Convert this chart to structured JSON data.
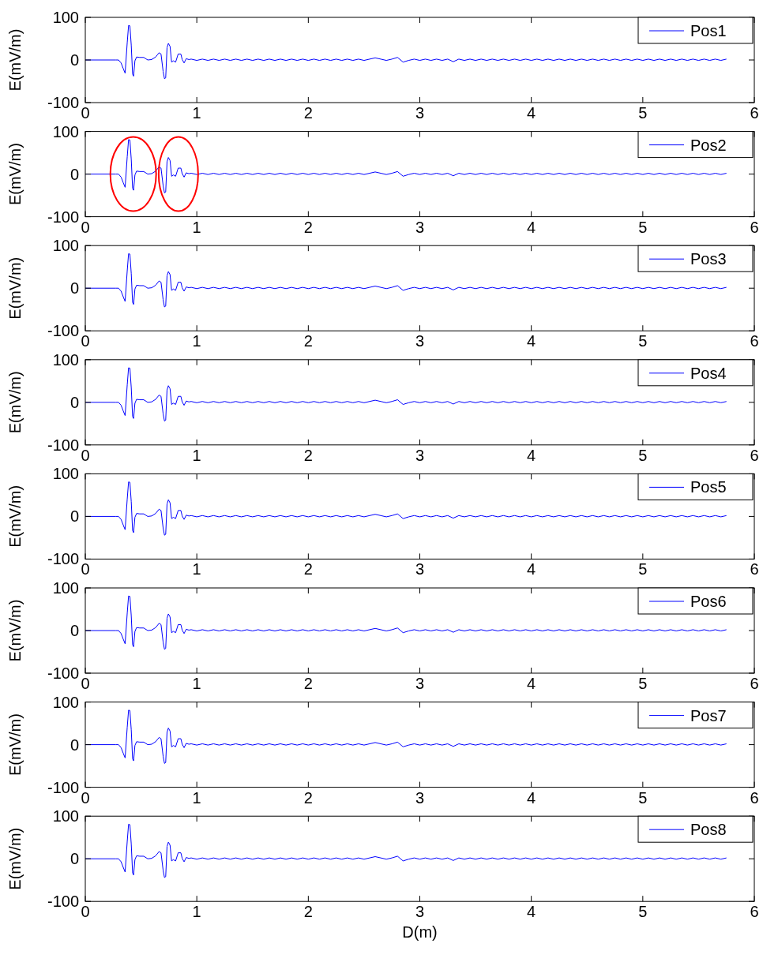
{
  "chart_data": [
    {
      "type": "line",
      "ylabel": "E(mV/m)",
      "xlim": [
        0,
        6
      ],
      "xticks": [
        0,
        1,
        2,
        3,
        4,
        5,
        6
      ],
      "ylim": [
        -100,
        100
      ],
      "yticks": [
        -100,
        0,
        100
      ],
      "legend": "top right",
      "grid": false,
      "x": [
        0,
        0.274,
        0.298,
        0.321,
        0.34,
        0.357,
        0.376,
        0.388,
        0.4,
        0.412,
        0.424,
        0.433,
        0.445,
        0.46,
        0.488,
        0.524,
        0.56,
        0.595,
        0.631,
        0.662,
        0.679,
        0.698,
        0.71,
        0.721,
        0.733,
        0.745,
        0.76,
        0.774,
        0.79,
        0.81,
        0.833,
        0.857,
        0.869,
        0.886,
        0.905,
        0.929,
        0.95,
        1,
        1.05,
        1.1,
        1.15,
        1.2,
        1.25,
        1.3,
        1.35,
        1.4,
        1.45,
        1.5,
        1.55,
        1.6,
        1.65,
        1.7,
        1.75,
        1.8,
        1.85,
        1.9,
        1.95,
        2,
        2.05,
        2.1,
        2.15,
        2.2,
        2.25,
        2.3,
        2.35,
        2.4,
        2.45,
        2.5,
        2.55,
        2.6,
        2.65,
        2.7,
        2.75,
        2.8,
        2.85,
        2.9,
        2.95,
        3,
        3.05,
        3.1,
        3.15,
        3.2,
        3.25,
        3.3,
        3.35,
        3.4,
        3.45,
        3.5,
        3.55,
        3.6,
        3.65,
        3.7,
        3.75,
        3.8,
        3.85,
        3.9,
        3.95,
        4,
        4.05,
        4.1,
        4.15,
        4.2,
        4.25,
        4.3,
        4.35,
        4.4,
        4.45,
        4.5,
        4.55,
        4.6,
        4.65,
        4.7,
        4.75,
        4.8,
        4.85,
        4.9,
        4.95,
        5,
        5.05,
        5.1,
        5.15,
        5.2,
        5.25,
        5.3,
        5.35,
        5.4,
        5.45,
        5.5,
        5.55,
        5.6,
        5.65,
        5.7,
        5.75
      ],
      "series": [
        {
          "name": "Pos1",
          "color": "#0000ff",
          "values": [
            0,
            0,
            0,
            -7,
            -20,
            -31,
            41,
            81,
            80,
            35,
            -33,
            -38,
            -2,
            7,
            6,
            6,
            0,
            1,
            7,
            17,
            14,
            -27,
            -44,
            -42,
            29,
            39,
            32,
            -5,
            -2,
            -5,
            14,
            14,
            1,
            -7,
            3,
            1,
            2,
            -1,
            2,
            -1,
            2,
            -1,
            2,
            -1,
            2,
            -1,
            2,
            -1,
            2,
            -1,
            2,
            -1,
            2,
            -1,
            2,
            -1,
            2,
            -1,
            2,
            -1,
            2,
            -1,
            2,
            -1,
            2,
            -1,
            2,
            -1,
            2,
            5,
            2,
            -1,
            2,
            6,
            -5,
            -1,
            2,
            -1,
            2,
            -1,
            2,
            -1,
            2,
            -4,
            2,
            -1,
            2,
            -1,
            2,
            -1,
            2,
            -1,
            2,
            -1,
            2,
            -1,
            2,
            -1,
            2,
            -1,
            2,
            -1,
            2,
            -1,
            2,
            -1,
            2,
            -1,
            2,
            -1,
            2,
            -1,
            2,
            -1,
            2,
            -1,
            2,
            -1,
            2,
            -1,
            2,
            -1,
            2,
            -1,
            2,
            -1,
            2,
            -1,
            2,
            -1,
            2,
            -1,
            2
          ]
        }
      ]
    },
    {
      "type": "line",
      "ylabel": "E(mV/m)",
      "xlim": [
        0,
        6
      ],
      "xticks": [
        0,
        1,
        2,
        3,
        4,
        5,
        6
      ],
      "ylim": [
        -100,
        100
      ],
      "yticks": [
        -100,
        0,
        100
      ],
      "legend": "top right",
      "grid": false,
      "x": [
        0,
        0.274,
        0.298,
        0.321,
        0.34,
        0.357,
        0.376,
        0.388,
        0.4,
        0.412,
        0.424,
        0.433,
        0.445,
        0.46,
        0.488,
        0.524,
        0.56,
        0.595,
        0.631,
        0.662,
        0.679,
        0.698,
        0.71,
        0.721,
        0.733,
        0.745,
        0.76,
        0.774,
        0.79,
        0.81,
        0.833,
        0.857,
        0.869,
        0.886,
        0.905,
        0.929,
        0.95,
        1,
        1.05,
        1.1,
        1.15,
        1.2,
        1.25,
        1.3,
        1.35,
        1.4,
        1.45,
        1.5,
        1.55,
        1.6,
        1.65,
        1.7,
        1.75,
        1.8,
        1.85,
        1.9,
        1.95,
        2,
        2.05,
        2.1,
        2.15,
        2.2,
        2.25,
        2.3,
        2.35,
        2.4,
        2.45,
        2.5,
        2.55,
        2.6,
        2.65,
        2.7,
        2.75,
        2.8,
        2.85,
        2.9,
        2.95,
        3,
        3.05,
        3.1,
        3.15,
        3.2,
        3.25,
        3.3,
        3.35,
        3.4,
        3.45,
        3.5,
        3.55,
        3.6,
        3.65,
        3.7,
        3.75,
        3.8,
        3.85,
        3.9,
        3.95,
        4,
        4.05,
        4.1,
        4.15,
        4.2,
        4.25,
        4.3,
        4.35,
        4.4,
        4.45,
        4.5,
        4.55,
        4.6,
        4.65,
        4.7,
        4.75,
        4.8,
        4.85,
        4.9,
        4.95,
        5,
        5.05,
        5.1,
        5.15,
        5.2,
        5.25,
        5.3,
        5.35,
        5.4,
        5.45,
        5.5,
        5.55,
        5.6,
        5.65,
        5.7,
        5.75
      ],
      "series": [
        {
          "name": "Pos2",
          "color": "#0000ff",
          "values": [
            0,
            0,
            0,
            -7,
            -20,
            -31,
            41,
            81,
            80,
            35,
            -33,
            -38,
            -2,
            7,
            6,
            6,
            0,
            1,
            7,
            17,
            14,
            -27,
            -44,
            -42,
            29,
            39,
            32,
            -5,
            -2,
            -5,
            14,
            14,
            1,
            -7,
            3,
            1,
            2,
            -1,
            2,
            -1,
            2,
            -1,
            2,
            -1,
            2,
            -1,
            2,
            -1,
            2,
            -1,
            2,
            -1,
            2,
            -1,
            2,
            -1,
            2,
            -1,
            2,
            -1,
            2,
            -1,
            2,
            -1,
            2,
            -1,
            2,
            -1,
            2,
            5,
            2,
            -1,
            2,
            6,
            -5,
            -1,
            2,
            -1,
            2,
            -1,
            2,
            -1,
            2,
            -4,
            2,
            -1,
            2,
            -1,
            2,
            -1,
            2,
            -1,
            2,
            -1,
            2,
            -1,
            2,
            -1,
            2,
            -1,
            2,
            -1,
            2,
            -1,
            2,
            -1,
            2,
            -1,
            2,
            -1,
            2,
            -1,
            2,
            -1,
            2,
            -1,
            2,
            -1,
            2,
            -1,
            2,
            -1,
            2,
            -1,
            2,
            -1,
            2,
            -1,
            2,
            -1,
            2,
            -1,
            2
          ]
        }
      ]
    },
    {
      "type": "line",
      "ylabel": "E(mV/m)",
      "xlim": [
        0,
        6
      ],
      "xticks": [
        0,
        1,
        2,
        3,
        4,
        5,
        6
      ],
      "ylim": [
        -100,
        100
      ],
      "yticks": [
        -100,
        0,
        100
      ],
      "legend": "top right",
      "grid": false,
      "x": [
        0,
        0.274,
        0.298,
        0.321,
        0.34,
        0.357,
        0.376,
        0.388,
        0.4,
        0.412,
        0.424,
        0.433,
        0.445,
        0.46,
        0.488,
        0.524,
        0.56,
        0.595,
        0.631,
        0.662,
        0.679,
        0.698,
        0.71,
        0.721,
        0.733,
        0.745,
        0.76,
        0.774,
        0.79,
        0.81,
        0.833,
        0.857,
        0.869,
        0.886,
        0.905,
        0.929,
        0.95,
        1,
        1.05,
        1.1,
        1.15,
        1.2,
        1.25,
        1.3,
        1.35,
        1.4,
        1.45,
        1.5,
        1.55,
        1.6,
        1.65,
        1.7,
        1.75,
        1.8,
        1.85,
        1.9,
        1.95,
        2,
        2.05,
        2.1,
        2.15,
        2.2,
        2.25,
        2.3,
        2.35,
        2.4,
        2.45,
        2.5,
        2.55,
        2.6,
        2.65,
        2.7,
        2.75,
        2.8,
        2.85,
        2.9,
        2.95,
        3,
        3.05,
        3.1,
        3.15,
        3.2,
        3.25,
        3.3,
        3.35,
        3.4,
        3.45,
        3.5,
        3.55,
        3.6,
        3.65,
        3.7,
        3.75,
        3.8,
        3.85,
        3.9,
        3.95,
        4,
        4.05,
        4.1,
        4.15,
        4.2,
        4.25,
        4.3,
        4.35,
        4.4,
        4.45,
        4.5,
        4.55,
        4.6,
        4.65,
        4.7,
        4.75,
        4.8,
        4.85,
        4.9,
        4.95,
        5,
        5.05,
        5.1,
        5.15,
        5.2,
        5.25,
        5.3,
        5.35,
        5.4,
        5.45,
        5.5,
        5.55,
        5.6,
        5.65,
        5.7,
        5.75
      ],
      "series": [
        {
          "name": "Pos3",
          "color": "#0000ff",
          "values": [
            0,
            0,
            0,
            -7,
            -20,
            -31,
            41,
            81,
            80,
            35,
            -33,
            -38,
            -2,
            7,
            6,
            6,
            0,
            1,
            7,
            17,
            14,
            -27,
            -44,
            -42,
            29,
            39,
            32,
            -5,
            -2,
            -5,
            14,
            14,
            1,
            -7,
            3,
            1,
            2,
            -1,
            2,
            -1,
            2,
            -1,
            2,
            -1,
            2,
            -1,
            2,
            -1,
            2,
            -1,
            2,
            -1,
            2,
            -1,
            2,
            -1,
            2,
            -1,
            2,
            -1,
            2,
            -1,
            2,
            -1,
            2,
            -1,
            2,
            -1,
            2,
            5,
            2,
            -1,
            2,
            6,
            -5,
            -1,
            2,
            -1,
            2,
            -1,
            2,
            -1,
            2,
            -4,
            2,
            -1,
            2,
            -1,
            2,
            -1,
            2,
            -1,
            2,
            -1,
            2,
            -1,
            2,
            -1,
            2,
            -1,
            2,
            -1,
            2,
            -1,
            2,
            -1,
            2,
            -1,
            2,
            -1,
            2,
            -1,
            2,
            -1,
            2,
            -1,
            2,
            -1,
            2,
            -1,
            2,
            -1,
            2,
            -1,
            2,
            -1,
            2,
            -1,
            2,
            -1,
            2,
            -1,
            2
          ]
        }
      ]
    },
    {
      "type": "line",
      "ylabel": "E(mV/m)",
      "xlim": [
        0,
        6
      ],
      "xticks": [
        0,
        1,
        2,
        3,
        4,
        5,
        6
      ],
      "ylim": [
        -100,
        100
      ],
      "yticks": [
        -100,
        0,
        100
      ],
      "legend": "top right",
      "grid": false,
      "x": [
        0,
        0.274,
        0.298,
        0.321,
        0.34,
        0.357,
        0.376,
        0.388,
        0.4,
        0.412,
        0.424,
        0.433,
        0.445,
        0.46,
        0.488,
        0.524,
        0.56,
        0.595,
        0.631,
        0.662,
        0.679,
        0.698,
        0.71,
        0.721,
        0.733,
        0.745,
        0.76,
        0.774,
        0.79,
        0.81,
        0.833,
        0.857,
        0.869,
        0.886,
        0.905,
        0.929,
        0.95,
        1,
        1.05,
        1.1,
        1.15,
        1.2,
        1.25,
        1.3,
        1.35,
        1.4,
        1.45,
        1.5,
        1.55,
        1.6,
        1.65,
        1.7,
        1.75,
        1.8,
        1.85,
        1.9,
        1.95,
        2,
        2.05,
        2.1,
        2.15,
        2.2,
        2.25,
        2.3,
        2.35,
        2.4,
        2.45,
        2.5,
        2.55,
        2.6,
        2.65,
        2.7,
        2.75,
        2.8,
        2.85,
        2.9,
        2.95,
        3,
        3.05,
        3.1,
        3.15,
        3.2,
        3.25,
        3.3,
        3.35,
        3.4,
        3.45,
        3.5,
        3.55,
        3.6,
        3.65,
        3.7,
        3.75,
        3.8,
        3.85,
        3.9,
        3.95,
        4,
        4.05,
        4.1,
        4.15,
        4.2,
        4.25,
        4.3,
        4.35,
        4.4,
        4.45,
        4.5,
        4.55,
        4.6,
        4.65,
        4.7,
        4.75,
        4.8,
        4.85,
        4.9,
        4.95,
        5,
        5.05,
        5.1,
        5.15,
        5.2,
        5.25,
        5.3,
        5.35,
        5.4,
        5.45,
        5.5,
        5.55,
        5.6,
        5.65,
        5.7,
        5.75
      ],
      "series": [
        {
          "name": "Pos4",
          "color": "#0000ff",
          "values": [
            0,
            0,
            0,
            -7,
            -20,
            -31,
            41,
            81,
            80,
            35,
            -33,
            -38,
            -2,
            7,
            6,
            6,
            0,
            1,
            7,
            17,
            14,
            -27,
            -44,
            -42,
            29,
            39,
            32,
            -5,
            -2,
            -5,
            14,
            14,
            1,
            -7,
            3,
            1,
            2,
            -1,
            2,
            -1,
            2,
            -1,
            2,
            -1,
            2,
            -1,
            2,
            -1,
            2,
            -1,
            2,
            -1,
            2,
            -1,
            2,
            -1,
            2,
            -1,
            2,
            -1,
            2,
            -1,
            2,
            -1,
            2,
            -1,
            2,
            -1,
            2,
            5,
            2,
            -1,
            2,
            6,
            -5,
            -1,
            2,
            -1,
            2,
            -1,
            2,
            -1,
            2,
            -4,
            2,
            -1,
            2,
            -1,
            2,
            -1,
            2,
            -1,
            2,
            -1,
            2,
            -1,
            2,
            -1,
            2,
            -1,
            2,
            -1,
            2,
            -1,
            2,
            -1,
            2,
            -1,
            2,
            -1,
            2,
            -1,
            2,
            -1,
            2,
            -1,
            2,
            -1,
            2,
            -1,
            2,
            -1,
            2,
            -1,
            2,
            -1,
            2,
            -1,
            2,
            -1,
            2,
            -1,
            2
          ]
        }
      ]
    },
    {
      "type": "line",
      "ylabel": "E(mV/m)",
      "xlim": [
        0,
        6
      ],
      "xticks": [
        0,
        1,
        2,
        3,
        4,
        5,
        6
      ],
      "ylim": [
        -100,
        100
      ],
      "yticks": [
        -100,
        0,
        100
      ],
      "legend": "top right",
      "grid": false,
      "x": [
        0,
        0.274,
        0.298,
        0.321,
        0.34,
        0.357,
        0.376,
        0.388,
        0.4,
        0.412,
        0.424,
        0.433,
        0.445,
        0.46,
        0.488,
        0.524,
        0.56,
        0.595,
        0.631,
        0.662,
        0.679,
        0.698,
        0.71,
        0.721,
        0.733,
        0.745,
        0.76,
        0.774,
        0.79,
        0.81,
        0.833,
        0.857,
        0.869,
        0.886,
        0.905,
        0.929,
        0.95,
        1,
        1.05,
        1.1,
        1.15,
        1.2,
        1.25,
        1.3,
        1.35,
        1.4,
        1.45,
        1.5,
        1.55,
        1.6,
        1.65,
        1.7,
        1.75,
        1.8,
        1.85,
        1.9,
        1.95,
        2,
        2.05,
        2.1,
        2.15,
        2.2,
        2.25,
        2.3,
        2.35,
        2.4,
        2.45,
        2.5,
        2.55,
        2.6,
        2.65,
        2.7,
        2.75,
        2.8,
        2.85,
        2.9,
        2.95,
        3,
        3.05,
        3.1,
        3.15,
        3.2,
        3.25,
        3.3,
        3.35,
        3.4,
        3.45,
        3.5,
        3.55,
        3.6,
        3.65,
        3.7,
        3.75,
        3.8,
        3.85,
        3.9,
        3.95,
        4,
        4.05,
        4.1,
        4.15,
        4.2,
        4.25,
        4.3,
        4.35,
        4.4,
        4.45,
        4.5,
        4.55,
        4.6,
        4.65,
        4.7,
        4.75,
        4.8,
        4.85,
        4.9,
        4.95,
        5,
        5.05,
        5.1,
        5.15,
        5.2,
        5.25,
        5.3,
        5.35,
        5.4,
        5.45,
        5.5,
        5.55,
        5.6,
        5.65,
        5.7,
        5.75
      ],
      "series": [
        {
          "name": "Pos5",
          "color": "#0000ff",
          "values": [
            0,
            0,
            0,
            -7,
            -20,
            -31,
            41,
            81,
            80,
            35,
            -33,
            -38,
            -2,
            7,
            6,
            6,
            0,
            1,
            7,
            17,
            14,
            -27,
            -44,
            -42,
            29,
            39,
            32,
            -5,
            -2,
            -5,
            14,
            14,
            1,
            -7,
            3,
            1,
            2,
            -1,
            2,
            -1,
            2,
            -1,
            2,
            -1,
            2,
            -1,
            2,
            -1,
            2,
            -1,
            2,
            -1,
            2,
            -1,
            2,
            -1,
            2,
            -1,
            2,
            -1,
            2,
            -1,
            2,
            -1,
            2,
            -1,
            2,
            -1,
            2,
            5,
            2,
            -1,
            2,
            6,
            -5,
            -1,
            2,
            -1,
            2,
            -1,
            2,
            -1,
            2,
            -4,
            2,
            -1,
            2,
            -1,
            2,
            -1,
            2,
            -1,
            2,
            -1,
            2,
            -1,
            2,
            -1,
            2,
            -1,
            2,
            -1,
            2,
            -1,
            2,
            -1,
            2,
            -1,
            2,
            -1,
            2,
            -1,
            2,
            -1,
            2,
            -1,
            2,
            -1,
            2,
            -1,
            2,
            -1,
            2,
            -1,
            2,
            -1,
            2,
            -1,
            2,
            -1,
            2,
            -1,
            2
          ]
        }
      ]
    },
    {
      "type": "line",
      "ylabel": "E(mV/m)",
      "xlim": [
        0,
        6
      ],
      "xticks": [
        0,
        1,
        2,
        3,
        4,
        5,
        6
      ],
      "ylim": [
        -100,
        100
      ],
      "yticks": [
        -100,
        0,
        100
      ],
      "legend": "top right",
      "grid": false,
      "x": [
        0,
        0.274,
        0.298,
        0.321,
        0.34,
        0.357,
        0.376,
        0.388,
        0.4,
        0.412,
        0.424,
        0.433,
        0.445,
        0.46,
        0.488,
        0.524,
        0.56,
        0.595,
        0.631,
        0.662,
        0.679,
        0.698,
        0.71,
        0.721,
        0.733,
        0.745,
        0.76,
        0.774,
        0.79,
        0.81,
        0.833,
        0.857,
        0.869,
        0.886,
        0.905,
        0.929,
        0.95,
        1,
        1.05,
        1.1,
        1.15,
        1.2,
        1.25,
        1.3,
        1.35,
        1.4,
        1.45,
        1.5,
        1.55,
        1.6,
        1.65,
        1.7,
        1.75,
        1.8,
        1.85,
        1.9,
        1.95,
        2,
        2.05,
        2.1,
        2.15,
        2.2,
        2.25,
        2.3,
        2.35,
        2.4,
        2.45,
        2.5,
        2.55,
        2.6,
        2.65,
        2.7,
        2.75,
        2.8,
        2.85,
        2.9,
        2.95,
        3,
        3.05,
        3.1,
        3.15,
        3.2,
        3.25,
        3.3,
        3.35,
        3.4,
        3.45,
        3.5,
        3.55,
        3.6,
        3.65,
        3.7,
        3.75,
        3.8,
        3.85,
        3.9,
        3.95,
        4,
        4.05,
        4.1,
        4.15,
        4.2,
        4.25,
        4.3,
        4.35,
        4.4,
        4.45,
        4.5,
        4.55,
        4.6,
        4.65,
        4.7,
        4.75,
        4.8,
        4.85,
        4.9,
        4.95,
        5,
        5.05,
        5.1,
        5.15,
        5.2,
        5.25,
        5.3,
        5.35,
        5.4,
        5.45,
        5.5,
        5.55,
        5.6,
        5.65,
        5.7,
        5.75
      ],
      "series": [
        {
          "name": "Pos6",
          "color": "#0000ff",
          "values": [
            0,
            0,
            0,
            -7,
            -20,
            -31,
            41,
            81,
            80,
            35,
            -33,
            -38,
            -2,
            7,
            6,
            6,
            0,
            1,
            7,
            17,
            14,
            -27,
            -44,
            -42,
            29,
            39,
            32,
            -5,
            -2,
            -5,
            14,
            14,
            1,
            -7,
            3,
            1,
            2,
            -1,
            2,
            -1,
            2,
            -1,
            2,
            -1,
            2,
            -1,
            2,
            -1,
            2,
            -1,
            2,
            -1,
            2,
            -1,
            2,
            -1,
            2,
            -1,
            2,
            -1,
            2,
            -1,
            2,
            -1,
            2,
            -1,
            2,
            -1,
            2,
            5,
            2,
            -1,
            2,
            6,
            -5,
            -1,
            2,
            -1,
            2,
            -1,
            2,
            -1,
            2,
            -4,
            2,
            -1,
            2,
            -1,
            2,
            -1,
            2,
            -1,
            2,
            -1,
            2,
            -1,
            2,
            -1,
            2,
            -1,
            2,
            -1,
            2,
            -1,
            2,
            -1,
            2,
            -1,
            2,
            -1,
            2,
            -1,
            2,
            -1,
            2,
            -1,
            2,
            -1,
            2,
            -1,
            2,
            -1,
            2,
            -1,
            2,
            -1,
            2,
            -1,
            2,
            -1,
            2,
            -1,
            2
          ]
        }
      ]
    },
    {
      "type": "line",
      "ylabel": "E(mV/m)",
      "xlim": [
        0,
        6
      ],
      "xticks": [
        0,
        1,
        2,
        3,
        4,
        5,
        6
      ],
      "ylim": [
        -100,
        100
      ],
      "yticks": [
        -100,
        0,
        100
      ],
      "legend": "top right",
      "grid": false,
      "x": [
        0,
        0.274,
        0.298,
        0.321,
        0.34,
        0.357,
        0.376,
        0.388,
        0.4,
        0.412,
        0.424,
        0.433,
        0.445,
        0.46,
        0.488,
        0.524,
        0.56,
        0.595,
        0.631,
        0.662,
        0.679,
        0.698,
        0.71,
        0.721,
        0.733,
        0.745,
        0.76,
        0.774,
        0.79,
        0.81,
        0.833,
        0.857,
        0.869,
        0.886,
        0.905,
        0.929,
        0.95,
        1,
        1.05,
        1.1,
        1.15,
        1.2,
        1.25,
        1.3,
        1.35,
        1.4,
        1.45,
        1.5,
        1.55,
        1.6,
        1.65,
        1.7,
        1.75,
        1.8,
        1.85,
        1.9,
        1.95,
        2,
        2.05,
        2.1,
        2.15,
        2.2,
        2.25,
        2.3,
        2.35,
        2.4,
        2.45,
        2.5,
        2.55,
        2.6,
        2.65,
        2.7,
        2.75,
        2.8,
        2.85,
        2.9,
        2.95,
        3,
        3.05,
        3.1,
        3.15,
        3.2,
        3.25,
        3.3,
        3.35,
        3.4,
        3.45,
        3.5,
        3.55,
        3.6,
        3.65,
        3.7,
        3.75,
        3.8,
        3.85,
        3.9,
        3.95,
        4,
        4.05,
        4.1,
        4.15,
        4.2,
        4.25,
        4.3,
        4.35,
        4.4,
        4.45,
        4.5,
        4.55,
        4.6,
        4.65,
        4.7,
        4.75,
        4.8,
        4.85,
        4.9,
        4.95,
        5,
        5.05,
        5.1,
        5.15,
        5.2,
        5.25,
        5.3,
        5.35,
        5.4,
        5.45,
        5.5,
        5.55,
        5.6,
        5.65,
        5.7,
        5.75
      ],
      "series": [
        {
          "name": "Pos7",
          "color": "#0000ff",
          "values": [
            0,
            0,
            0,
            -7,
            -20,
            -31,
            41,
            81,
            80,
            35,
            -33,
            -38,
            -2,
            7,
            6,
            6,
            0,
            1,
            7,
            17,
            14,
            -27,
            -44,
            -42,
            29,
            39,
            32,
            -5,
            -2,
            -5,
            14,
            14,
            1,
            -7,
            3,
            1,
            2,
            -1,
            2,
            -1,
            2,
            -1,
            2,
            -1,
            2,
            -1,
            2,
            -1,
            2,
            -1,
            2,
            -1,
            2,
            -1,
            2,
            -1,
            2,
            -1,
            2,
            -1,
            2,
            -1,
            2,
            -1,
            2,
            -1,
            2,
            -1,
            2,
            5,
            2,
            -1,
            2,
            6,
            -5,
            -1,
            2,
            -1,
            2,
            -1,
            2,
            -1,
            2,
            -4,
            2,
            -1,
            2,
            -1,
            2,
            -1,
            2,
            -1,
            2,
            -1,
            2,
            -1,
            2,
            -1,
            2,
            -1,
            2,
            -1,
            2,
            -1,
            2,
            -1,
            2,
            -1,
            2,
            -1,
            2,
            -1,
            2,
            -1,
            2,
            -1,
            2,
            -1,
            2,
            -1,
            2,
            -1,
            2,
            -1,
            2,
            -1,
            2,
            -1,
            2,
            -1,
            2,
            -1,
            2
          ]
        }
      ]
    },
    {
      "type": "line",
      "ylabel": "E(mV/m)",
      "xlabel": "D(m)",
      "xlim": [
        0,
        6
      ],
      "xticks": [
        0,
        1,
        2,
        3,
        4,
        5,
        6
      ],
      "ylim": [
        -100,
        100
      ],
      "yticks": [
        -100,
        0,
        100
      ],
      "legend": "top right",
      "grid": false,
      "x": [
        0,
        0.274,
        0.298,
        0.321,
        0.34,
        0.357,
        0.376,
        0.388,
        0.4,
        0.412,
        0.424,
        0.433,
        0.445,
        0.46,
        0.488,
        0.524,
        0.56,
        0.595,
        0.631,
        0.662,
        0.679,
        0.698,
        0.71,
        0.721,
        0.733,
        0.745,
        0.76,
        0.774,
        0.79,
        0.81,
        0.833,
        0.857,
        0.869,
        0.886,
        0.905,
        0.929,
        0.95,
        1,
        1.05,
        1.1,
        1.15,
        1.2,
        1.25,
        1.3,
        1.35,
        1.4,
        1.45,
        1.5,
        1.55,
        1.6,
        1.65,
        1.7,
        1.75,
        1.8,
        1.85,
        1.9,
        1.95,
        2,
        2.05,
        2.1,
        2.15,
        2.2,
        2.25,
        2.3,
        2.35,
        2.4,
        2.45,
        2.5,
        2.55,
        2.6,
        2.65,
        2.7,
        2.75,
        2.8,
        2.85,
        2.9,
        2.95,
        3,
        3.05,
        3.1,
        3.15,
        3.2,
        3.25,
        3.3,
        3.35,
        3.4,
        3.45,
        3.5,
        3.55,
        3.6,
        3.65,
        3.7,
        3.75,
        3.8,
        3.85,
        3.9,
        3.95,
        4,
        4.05,
        4.1,
        4.15,
        4.2,
        4.25,
        4.3,
        4.35,
        4.4,
        4.45,
        4.5,
        4.55,
        4.6,
        4.65,
        4.7,
        4.75,
        4.8,
        4.85,
        4.9,
        4.95,
        5,
        5.05,
        5.1,
        5.15,
        5.2,
        5.25,
        5.3,
        5.35,
        5.4,
        5.45,
        5.5,
        5.55,
        5.6,
        5.65,
        5.7,
        5.75
      ],
      "series": [
        {
          "name": "Pos8",
          "color": "#0000ff",
          "values": [
            0,
            0,
            0,
            -7,
            -20,
            -31,
            41,
            81,
            80,
            35,
            -33,
            -38,
            -2,
            7,
            6,
            6,
            0,
            1,
            7,
            17,
            14,
            -27,
            -44,
            -42,
            29,
            39,
            32,
            -5,
            -2,
            -5,
            14,
            14,
            1,
            -7,
            3,
            1,
            2,
            -1,
            2,
            -1,
            2,
            -1,
            2,
            -1,
            2,
            -1,
            2,
            -1,
            2,
            -1,
            2,
            -1,
            2,
            -1,
            2,
            -1,
            2,
            -1,
            2,
            -1,
            2,
            -1,
            2,
            -1,
            2,
            -1,
            2,
            -1,
            2,
            5,
            2,
            -1,
            2,
            6,
            -5,
            -1,
            2,
            -1,
            2,
            -1,
            2,
            -1,
            2,
            -4,
            2,
            -1,
            2,
            -1,
            2,
            -1,
            2,
            -1,
            2,
            -1,
            2,
            -1,
            2,
            -1,
            2,
            -1,
            2,
            -1,
            2,
            -1,
            2,
            -1,
            2,
            -1,
            2,
            -1,
            2,
            -1,
            2,
            -1,
            2,
            -1,
            2,
            -1,
            2,
            -1,
            2,
            -1,
            2,
            -1,
            2,
            -1,
            2,
            -1,
            2,
            -1,
            2,
            -1,
            2
          ]
        }
      ]
    }
  ]
}
